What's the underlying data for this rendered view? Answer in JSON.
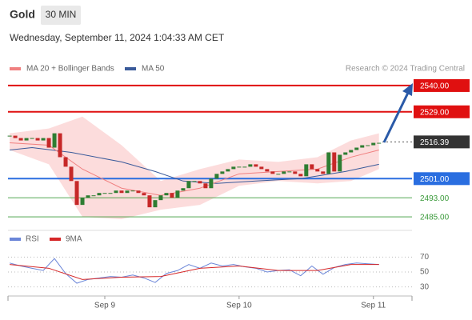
{
  "header": {
    "title": "Gold",
    "timeframe": "30 MIN",
    "datetime": "Wednesday, September 11, 2024 1:04:33 AM CET",
    "source": "Research © 2024 Trading Central"
  },
  "chart_data": [
    {
      "type": "candlestick",
      "ylim": [
        2482,
        2544
      ],
      "candles": {
        "up_color": "#2e7d32",
        "down_color": "#c62828",
        "values": [
          2519,
          2518,
          2517,
          2518,
          2518,
          2517,
          2518,
          2514,
          2520,
          2510,
          2506,
          2500,
          2490,
          2493,
          2494,
          2494,
          2495,
          2495,
          2495,
          2496,
          2495,
          2496,
          2496,
          2495,
          2494,
          2489,
          2492,
          2494,
          2495,
          2493,
          2496,
          2497,
          2500,
          2500,
          2499,
          2497,
          2501,
          2503,
          2504,
          2505,
          2506,
          2506,
          2506,
          2507,
          2506,
          2505,
          2504,
          2503,
          2503,
          2504,
          2504,
          2503,
          2502,
          2507,
          2505,
          2504,
          2503,
          2512,
          2504,
          2511,
          2512,
          2513,
          2514,
          2515,
          2515,
          2516,
          2516
        ]
      },
      "series": [
        {
          "name": "MA 20 + Bollinger Bands",
          "color": "#f08080",
          "band_color": "#fbd3d3",
          "x": [
            0,
            7,
            13,
            20,
            27,
            34,
            41,
            48,
            55,
            61,
            66
          ],
          "values": [
            2516,
            2515,
            2505,
            2497,
            2494,
            2497,
            2503,
            2504,
            2505,
            2510,
            2513
          ],
          "upper": [
            2520,
            2522,
            2527,
            2515,
            2500,
            2505,
            2509,
            2508,
            2510,
            2517,
            2520
          ],
          "lower": [
            2513,
            2507,
            2485,
            2484,
            2488,
            2490,
            2498,
            2500,
            2499,
            2500,
            2505
          ]
        },
        {
          "name": "MA 50",
          "color": "#3a5a9a",
          "x": [
            0,
            4,
            11,
            20,
            26,
            31,
            37,
            44,
            52,
            60,
            66
          ],
          "values": [
            2513,
            2514,
            2512,
            2508,
            2504,
            2500,
            2499,
            2500,
            2501,
            2504,
            2507
          ]
        }
      ],
      "levels": {
        "values": [
          2540,
          2529,
          2516.39,
          2501,
          2493,
          2485
        ],
        "value_labels": [
          "2540.00",
          "2529.00",
          "2516.39",
          "2501.00",
          "2493.00",
          "2485.00"
        ],
        "colors": [
          "#e01010",
          "#e01010",
          "#333333",
          "#2a6ee0",
          "#3a9a3a",
          "#3a9a3a"
        ]
      }
    },
    {
      "type": "line",
      "xlim": [
        -0.3,
        71.9
      ],
      "xticks": [
        {
          "value": 17,
          "label": "Sep 9"
        },
        {
          "value": 41,
          "label": "Sep 10"
        },
        {
          "value": 65,
          "label": "Sep 11"
        }
      ],
      "ylim": [
        20,
        80
      ],
      "yticks": [
        70,
        50,
        30
      ],
      "grid": true,
      "series": [
        {
          "name": "RSI",
          "color": "#6a85d8",
          "x": [
            0,
            2,
            4,
            6,
            8,
            10,
            12,
            14,
            16,
            18,
            20,
            22,
            24,
            26,
            28,
            30,
            32,
            34,
            36,
            38,
            40,
            42,
            44,
            46,
            48,
            50,
            52,
            54,
            56,
            58,
            60,
            62,
            64,
            66
          ],
          "values": [
            62,
            58,
            55,
            52,
            68,
            48,
            35,
            40,
            42,
            44,
            43,
            46,
            42,
            36,
            48,
            52,
            60,
            55,
            62,
            58,
            60,
            57,
            55,
            50,
            52,
            53,
            45,
            58,
            47,
            56,
            60,
            62,
            61,
            60
          ]
        },
        {
          "name": "9MA",
          "color": "#d62728",
          "x": [
            0,
            7,
            13,
            20,
            27,
            34,
            41,
            48,
            55,
            61,
            66
          ],
          "values": [
            60,
            55,
            40,
            43,
            44,
            55,
            58,
            52,
            52,
            60,
            60
          ]
        }
      ]
    }
  ]
}
